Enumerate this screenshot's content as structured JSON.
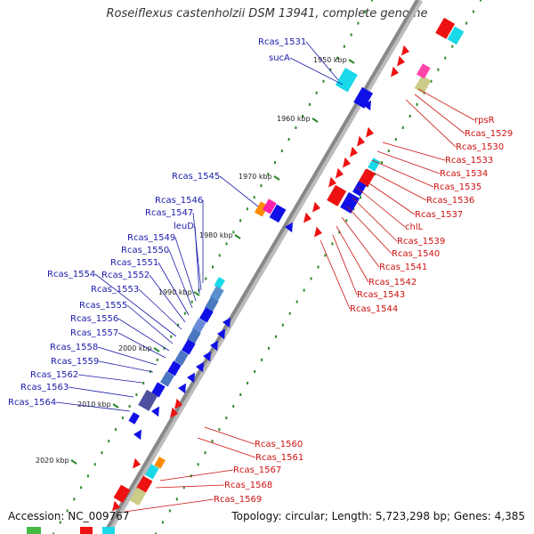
{
  "title": "Roseiflexus castenholzii DSM 13941, complete genome",
  "footer": {
    "accession": "Accession: NC_009767",
    "topology": "Topology: circular; Length: 5,723,298 bp; Genes: 4,385"
  },
  "colors": {
    "forward_label": "#1a1aa8",
    "reverse_label": "#cc1111",
    "forward_cds": "#1010e6",
    "reverse_cds": "#ee1111",
    "backbone": "#888888",
    "tick": "#2a8a2a"
  },
  "ticks": [
    "1950 kbp",
    "1960 kbp",
    "1970 kbp",
    "1980 kbp",
    "1990 kbp",
    "2000 kbp",
    "2010 kbp",
    "2020 kbp"
  ],
  "forward_labels": [
    "Rcas_1531",
    "sucA",
    "Rcas_1545",
    "Rcas_1546",
    "Rcas_1547",
    "leuD",
    "Rcas_1549",
    "Rcas_1550",
    "Rcas_1551",
    "Rcas_1552",
    "Rcas_1553",
    "Rcas_1554",
    "Rcas_1555",
    "Rcas_1556",
    "Rcas_1557",
    "Rcas_1558",
    "Rcas_1559",
    "Rcas_1562",
    "Rcas_1563",
    "Rcas_1564"
  ],
  "reverse_labels": [
    "rpsR",
    "Rcas_1529",
    "Rcas_1530",
    "Rcas_1533",
    "Rcas_1534",
    "Rcas_1535",
    "Rcas_1536",
    "Rcas_1537",
    "chlL",
    "Rcas_1539",
    "Rcas_1540",
    "Rcas_1541",
    "Rcas_1542",
    "Rcas_1543",
    "Rcas_1544",
    "Rcas_1560",
    "Rcas_1561",
    "Rcas_1567",
    "Rcas_1568",
    "Rcas_1569"
  ]
}
